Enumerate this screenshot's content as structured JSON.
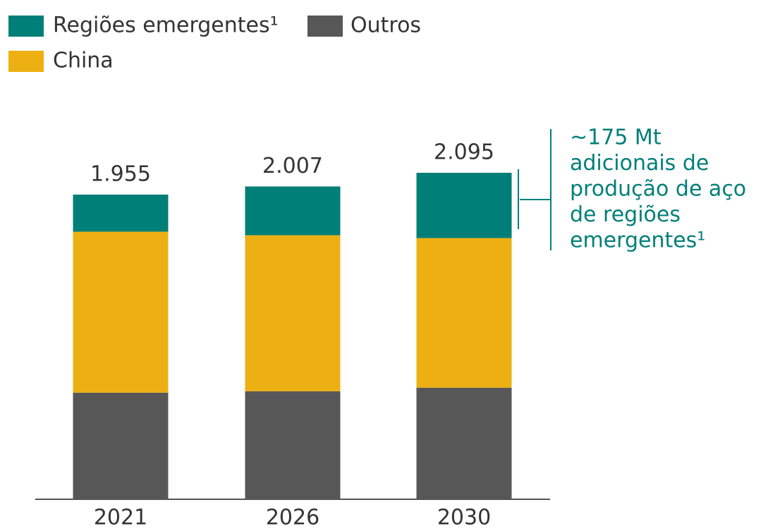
{
  "chart_data": {
    "type": "stacked_bar",
    "categories": [
      "2021",
      "2026",
      "2030"
    ],
    "series": [
      {
        "name": "Regiões emergentes¹",
        "color": "#007f78",
        "values": [
          238,
          313,
          419
        ]
      },
      {
        "name": "Outros",
        "color": "#575757",
        "values": [
          684,
          693,
          716
        ]
      },
      {
        "name": "China",
        "color": "#edb013",
        "values": [
          1033,
          1001,
          960
        ]
      }
    ],
    "stack_order": [
      "Outros",
      "China",
      "Regiões emergentes¹"
    ],
    "totals": {
      "values": [
        1955,
        2007,
        2095
      ],
      "value_labels": [
        "1.955",
        "2.007",
        "2.095"
      ]
    },
    "annotation": [
      "~175 Mt",
      "adicionais de",
      "produção de aço",
      "de regiões",
      "emergentes¹"
    ],
    "annotation_color": "#007f78"
  }
}
